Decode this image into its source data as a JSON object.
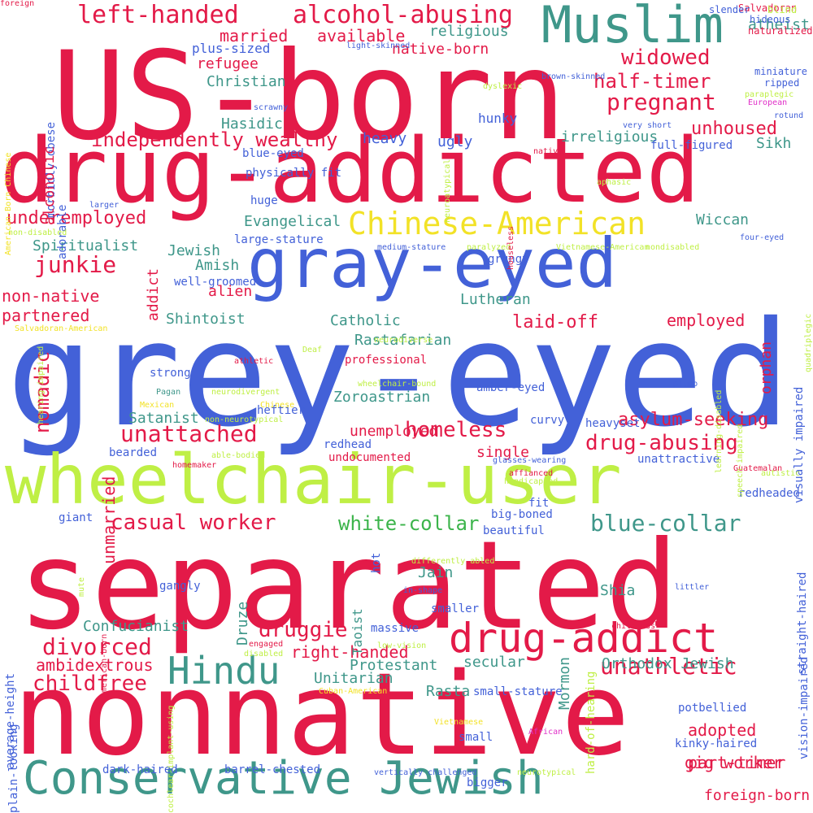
{
  "colors": {
    "background": "#ffffff",
    "red": "#e31a48",
    "blue": "#4361d8",
    "teal": "#3f978a",
    "lime": "#bfef45",
    "yellow": "#f2e227",
    "green": "#3cb44b",
    "magenta": "#e02fc8"
  },
  "words": [
    {
      "text": "grey-eyed",
      "color": "blue"
    },
    {
      "text": "separated",
      "color": "red"
    },
    {
      "text": "nonnative",
      "color": "red"
    },
    {
      "text": "US-born",
      "color": "red"
    },
    {
      "text": "drug-addicted",
      "color": "red"
    },
    {
      "text": "wheelchair-user",
      "color": "lime"
    },
    {
      "text": "gray-eyed",
      "color": "blue"
    },
    {
      "text": "Conservative Jewish",
      "color": "teal"
    },
    {
      "text": "Muslim",
      "color": "teal"
    },
    {
      "text": "drug-addict",
      "color": "red"
    },
    {
      "text": "Hindu",
      "color": "teal"
    },
    {
      "text": "Chinese-American",
      "color": "yellow"
    },
    {
      "text": "left-handed",
      "color": "red"
    },
    {
      "text": "alcohol-abusing",
      "color": "red"
    },
    {
      "text": "widowed",
      "color": "red"
    },
    {
      "text": "pregnant",
      "color": "red"
    },
    {
      "text": "half-timer",
      "color": "red"
    },
    {
      "text": "independently wealthy",
      "color": "red"
    },
    {
      "text": "unhoused",
      "color": "red"
    },
    {
      "text": "homeless",
      "color": "red"
    },
    {
      "text": "unattached",
      "color": "red"
    },
    {
      "text": "drug-abusing",
      "color": "red"
    },
    {
      "text": "asylum-seeking",
      "color": "red"
    },
    {
      "text": "casual worker",
      "color": "red"
    },
    {
      "text": "blue-collar",
      "color": "teal"
    },
    {
      "text": "white-collar",
      "color": "green"
    },
    {
      "text": "divorced",
      "color": "red"
    },
    {
      "text": "childfree",
      "color": "red"
    },
    {
      "text": "druggie",
      "color": "red"
    },
    {
      "text": "unathletic",
      "color": "red"
    },
    {
      "text": "junkie",
      "color": "red"
    },
    {
      "text": "underemployed",
      "color": "red"
    },
    {
      "text": "married",
      "color": "red"
    },
    {
      "text": "available",
      "color": "red"
    },
    {
      "text": "native-born",
      "color": "red"
    },
    {
      "text": "refugee",
      "color": "red"
    },
    {
      "text": "non-native",
      "color": "red"
    },
    {
      "text": "partnered",
      "color": "red"
    },
    {
      "text": "laid-off",
      "color": "red"
    },
    {
      "text": "employed",
      "color": "red"
    },
    {
      "text": "unemployed",
      "color": "red"
    },
    {
      "text": "single",
      "color": "red"
    },
    {
      "text": "right-handed",
      "color": "red"
    },
    {
      "text": "ambidextrous",
      "color": "red"
    },
    {
      "text": "adopted",
      "color": "red"
    },
    {
      "text": "part-timer",
      "color": "red"
    },
    {
      "text": "gig worker",
      "color": "red"
    },
    {
      "text": "foreign-born",
      "color": "red"
    },
    {
      "text": "Christian",
      "color": "teal"
    },
    {
      "text": "Hasidic",
      "color": "teal"
    },
    {
      "text": "Evangelical",
      "color": "teal"
    },
    {
      "text": "Spiritualist",
      "color": "teal"
    },
    {
      "text": "Jewish",
      "color": "teal"
    },
    {
      "text": "Amish",
      "color": "teal"
    },
    {
      "text": "Shintoist",
      "color": "teal"
    },
    {
      "text": "Catholic",
      "color": "teal"
    },
    {
      "text": "Rastafarian",
      "color": "teal"
    },
    {
      "text": "Lutheran",
      "color": "teal"
    },
    {
      "text": "Zoroastrian",
      "color": "teal"
    },
    {
      "text": "Satanist",
      "color": "teal"
    },
    {
      "text": "Wiccan",
      "color": "teal"
    },
    {
      "text": "Sikh",
      "color": "teal"
    },
    {
      "text": "irreligious",
      "color": "teal"
    },
    {
      "text": "religious",
      "color": "teal"
    },
    {
      "text": "atheist",
      "color": "teal"
    },
    {
      "text": "Protestant",
      "color": "teal"
    },
    {
      "text": "Unitarian",
      "color": "teal"
    },
    {
      "text": "Orthodox Jewish",
      "color": "teal"
    },
    {
      "text": "Confucianist",
      "color": "teal"
    },
    {
      "text": "Jain",
      "color": "teal"
    },
    {
      "text": "Shia",
      "color": "teal"
    },
    {
      "text": "secular",
      "color": "teal"
    },
    {
      "text": "Druze",
      "color": "teal"
    },
    {
      "text": "Rasta",
      "color": "teal"
    },
    {
      "text": "heavy",
      "color": "blue"
    },
    {
      "text": "ugly",
      "color": "blue"
    },
    {
      "text": "hunky",
      "color": "blue"
    },
    {
      "text": "plus-sized",
      "color": "blue"
    },
    {
      "text": "blue-eyed",
      "color": "blue"
    },
    {
      "text": "physically fit",
      "color": "blue"
    },
    {
      "text": "huge",
      "color": "blue"
    },
    {
      "text": "large-stature",
      "color": "blue"
    },
    {
      "text": "well-groomed",
      "color": "blue"
    },
    {
      "text": "full-figured",
      "color": "blue"
    },
    {
      "text": "grungy",
      "color": "blue"
    },
    {
      "text": "strong",
      "color": "blue"
    },
    {
      "text": "curvy",
      "color": "blue"
    },
    {
      "text": "heftier",
      "color": "blue"
    },
    {
      "text": "heavyset",
      "color": "blue"
    },
    {
      "text": "redhead",
      "color": "blue"
    },
    {
      "text": "bearded",
      "color": "blue"
    },
    {
      "text": "amber-eyed",
      "color": "blue"
    },
    {
      "text": "unattractive",
      "color": "blue"
    },
    {
      "text": "redheaded",
      "color": "blue"
    },
    {
      "text": "fit",
      "color": "blue"
    },
    {
      "text": "big-boned",
      "color": "blue"
    },
    {
      "text": "beautiful",
      "color": "blue"
    },
    {
      "text": "giant",
      "color": "blue"
    },
    {
      "text": "gangly",
      "color": "blue"
    },
    {
      "text": "hot",
      "color": "blue"
    },
    {
      "text": "smaller",
      "color": "blue"
    },
    {
      "text": "massive",
      "color": "blue"
    },
    {
      "text": "small-stature",
      "color": "blue"
    },
    {
      "text": "small",
      "color": "blue"
    },
    {
      "text": "potbellied",
      "color": "blue"
    },
    {
      "text": "kinky-haired",
      "color": "blue"
    },
    {
      "text": "dark-haired",
      "color": "blue"
    },
    {
      "text": "barrel-chested",
      "color": "blue"
    },
    {
      "text": "bigger",
      "color": "blue"
    },
    {
      "text": "vision-impaired",
      "color": "blue"
    },
    {
      "text": "straight-haired",
      "color": "blue"
    },
    {
      "text": "visually impaired",
      "color": "blue"
    },
    {
      "text": "plain-looking",
      "color": "blue"
    },
    {
      "text": "average-height",
      "color": "blue"
    },
    {
      "text": "morbidly obese",
      "color": "blue"
    },
    {
      "text": "adorable",
      "color": "blue"
    },
    {
      "text": "alien",
      "color": "red"
    },
    {
      "text": "orphan",
      "color": "red"
    },
    {
      "text": "addict",
      "color": "red"
    },
    {
      "text": "alcoholic",
      "color": "red"
    },
    {
      "text": "nomadic",
      "color": "red"
    },
    {
      "text": "unmarried",
      "color": "red"
    },
    {
      "text": "professional",
      "color": "red"
    },
    {
      "text": "undocumented",
      "color": "red"
    },
    {
      "text": "Mormon",
      "color": "teal"
    },
    {
      "text": "Taoist",
      "color": "teal"
    },
    {
      "text": "Salvadoran",
      "color": "red"
    },
    {
      "text": "slender",
      "color": "blue"
    },
    {
      "text": "blind",
      "color": "lime"
    },
    {
      "text": "hideous",
      "color": "blue"
    },
    {
      "text": "naturalized",
      "color": "red"
    },
    {
      "text": "ripped",
      "color": "blue"
    },
    {
      "text": "miniature",
      "color": "blue"
    },
    {
      "text": "light-skinned",
      "color": "blue"
    },
    {
      "text": "brown-skinned",
      "color": "blue"
    },
    {
      "text": "dyslexic",
      "color": "lime"
    },
    {
      "text": "paraplegic",
      "color": "lime"
    },
    {
      "text": "European",
      "color": "magenta"
    },
    {
      "text": "scrawny",
      "color": "blue"
    },
    {
      "text": "rotund",
      "color": "blue"
    },
    {
      "text": "very short",
      "color": "blue"
    },
    {
      "text": "native",
      "color": "red"
    },
    {
      "text": "aphasic",
      "color": "lime"
    },
    {
      "text": "larger",
      "color": "blue"
    },
    {
      "text": "four-eyed",
      "color": "blue"
    },
    {
      "text": "medium-stature",
      "color": "blue"
    },
    {
      "text": "paralyzed",
      "color": "lime"
    },
    {
      "text": "Vietnamese-American",
      "color": "lime"
    },
    {
      "text": "nondisabled",
      "color": "lime"
    },
    {
      "text": "non-disabled",
      "color": "lime"
    },
    {
      "text": "Salvadoran-American",
      "color": "yellow"
    },
    {
      "text": "Deaf",
      "color": "lime"
    },
    {
      "text": "neurodiverse",
      "color": "lime"
    },
    {
      "text": "athletic",
      "color": "red"
    },
    {
      "text": "neurodivergent",
      "color": "lime"
    },
    {
      "text": "wheelchair-bound",
      "color": "lime"
    },
    {
      "text": "plump",
      "color": "blue"
    },
    {
      "text": "Pagan",
      "color": "teal"
    },
    {
      "text": "Mexican",
      "color": "yellow"
    },
    {
      "text": "Chinese",
      "color": "yellow"
    },
    {
      "text": "non-neurotypical",
      "color": "lime"
    },
    {
      "text": "able-bodied",
      "color": "lime"
    },
    {
      "text": "homemaker",
      "color": "red"
    },
    {
      "text": "glasses-wearing",
      "color": "blue"
    },
    {
      "text": "affianced",
      "color": "red"
    },
    {
      "text": "handicapped",
      "color": "lime"
    },
    {
      "text": "autistic",
      "color": "lime"
    },
    {
      "text": "Guatemalan",
      "color": "red"
    },
    {
      "text": "differently abled",
      "color": "lime"
    },
    {
      "text": "in-shape",
      "color": "blue"
    },
    {
      "text": "littler",
      "color": "blue"
    },
    {
      "text": "childless",
      "color": "red"
    },
    {
      "text": "engaged",
      "color": "red"
    },
    {
      "text": "disabled",
      "color": "lime"
    },
    {
      "text": "low-vision",
      "color": "lime"
    },
    {
      "text": "Cuban-American",
      "color": "yellow"
    },
    {
      "text": "Vietnamese",
      "color": "yellow"
    },
    {
      "text": "African",
      "color": "magenta"
    },
    {
      "text": "vertically challenged",
      "color": "blue"
    },
    {
      "text": "neurotypical",
      "color": "lime"
    },
    {
      "text": "American-born",
      "color": "red"
    },
    {
      "text": "American-Born Chinese",
      "color": "yellow"
    },
    {
      "text": "mute",
      "color": "lime"
    },
    {
      "text": "neuroatypical",
      "color": "lime"
    },
    {
      "text": "houseless",
      "color": "red"
    },
    {
      "text": "hearing-impaired",
      "color": "lime"
    },
    {
      "text": "learning-disabled",
      "color": "lime"
    },
    {
      "text": "speech-impaired",
      "color": "lime"
    },
    {
      "text": "quadriplegic",
      "color": "lime"
    },
    {
      "text": "cochlear-implant-using",
      "color": "lime"
    },
    {
      "text": "hard-of-hearing",
      "color": "lime"
    },
    {
      "text": "foreign",
      "color": "red"
    }
  ]
}
